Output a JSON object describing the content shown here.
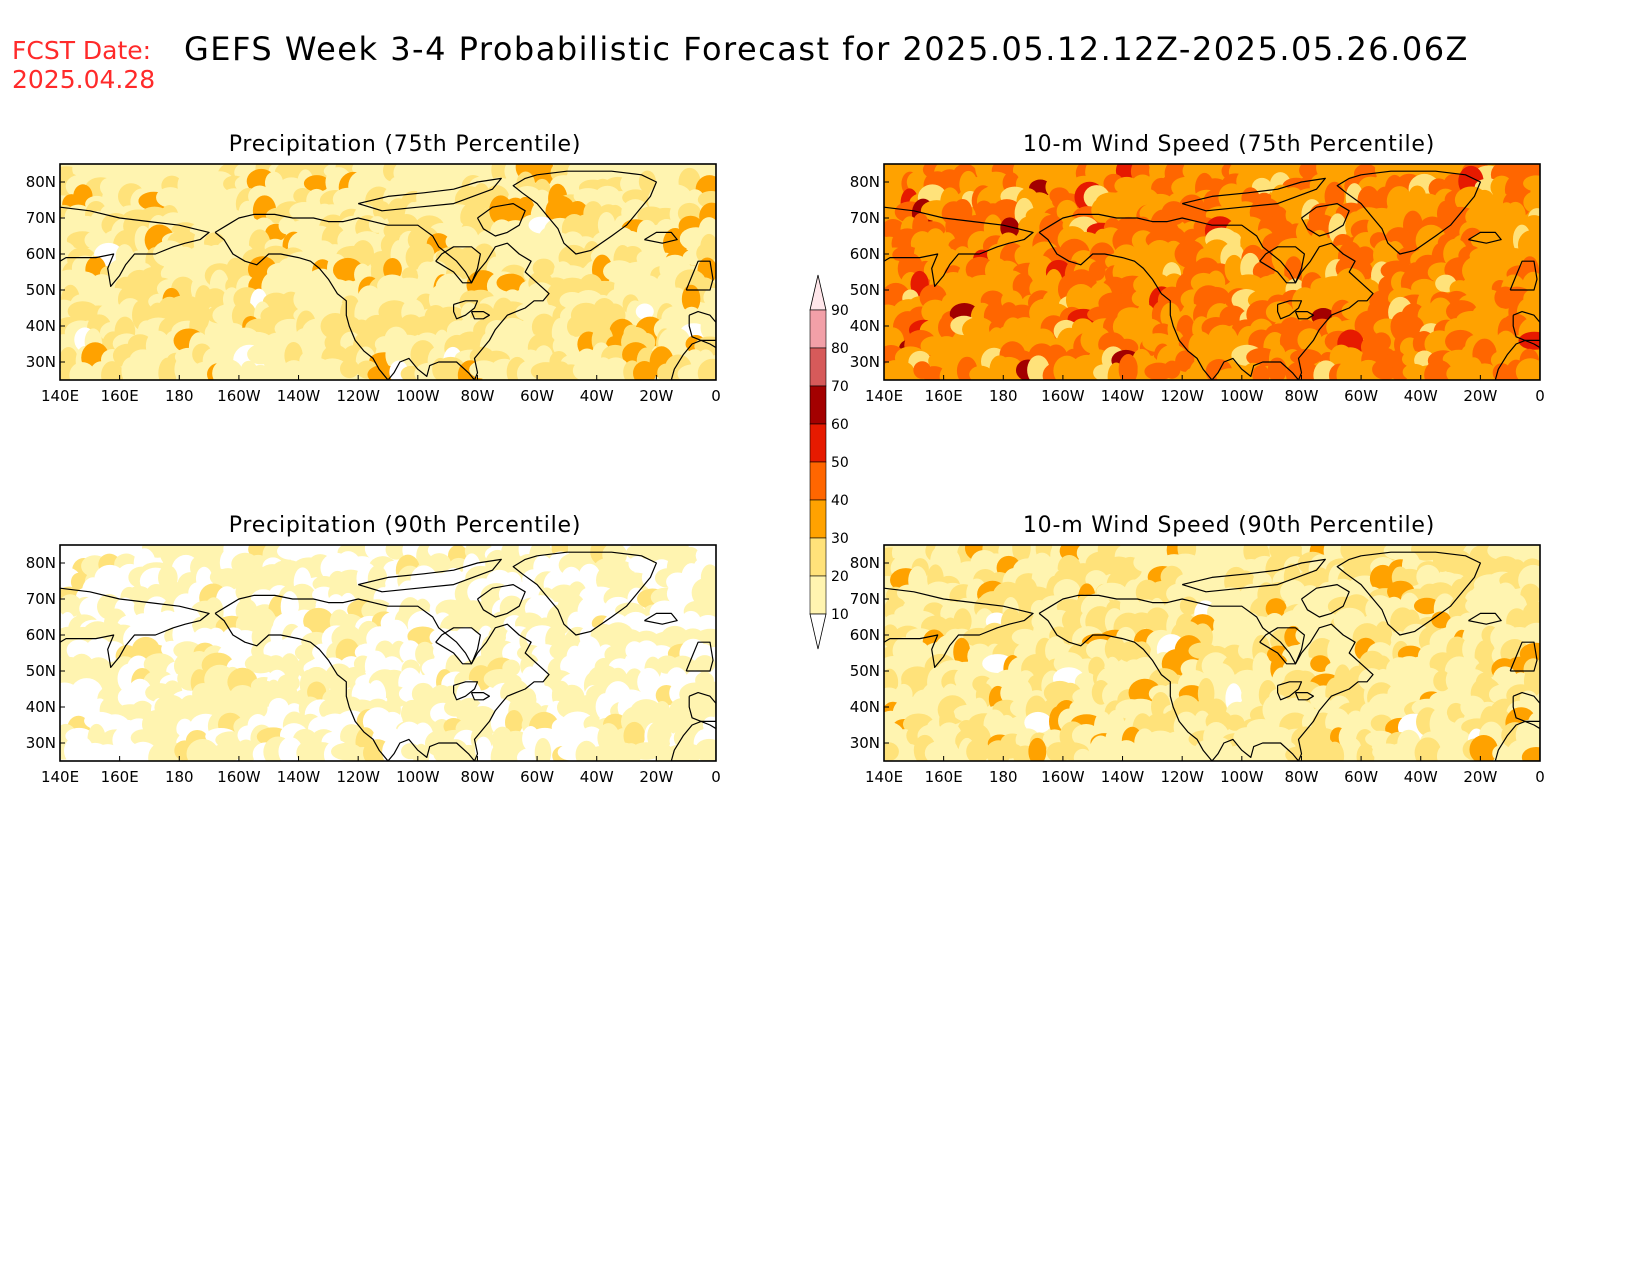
{
  "header": {
    "fcst_label": "FCST Date:",
    "fcst_date": "2025.04.28",
    "title": "GEFS Week 3-4 Probabilistic Forecast for 2025.05.12.12Z-2025.05.26.06Z"
  },
  "axes": {
    "lon_labels": [
      "140E",
      "160E",
      "180",
      "160W",
      "140W",
      "120W",
      "100W",
      "80W",
      "60W",
      "40W",
      "20W",
      "0"
    ],
    "lat_labels": [
      "80N",
      "70N",
      "60N",
      "50N",
      "40N",
      "30N"
    ]
  },
  "panels": [
    {
      "id": "precip75",
      "title": "Precipitation (75th Percentile)",
      "intensity": "low-moderate"
    },
    {
      "id": "wind75",
      "title": "10-m Wind Speed (75th Percentile)",
      "intensity": "high"
    },
    {
      "id": "precip90",
      "title": "Precipitation (90th Percentile)",
      "intensity": "low"
    },
    {
      "id": "wind90",
      "title": "10-m Wind Speed (90th Percentile)",
      "intensity": "low-moderate"
    }
  ],
  "legend": {
    "levels": [
      "10",
      "20",
      "30",
      "40",
      "50",
      "60",
      "70",
      "80",
      "90"
    ],
    "colors": [
      "#ffffff",
      "#fff4b0",
      "#ffe27a",
      "#ffa200",
      "#ff6600",
      "#e61a00",
      "#a30000",
      "#d65a5a",
      "#f2a0a8",
      "#ffe6ea"
    ]
  }
}
